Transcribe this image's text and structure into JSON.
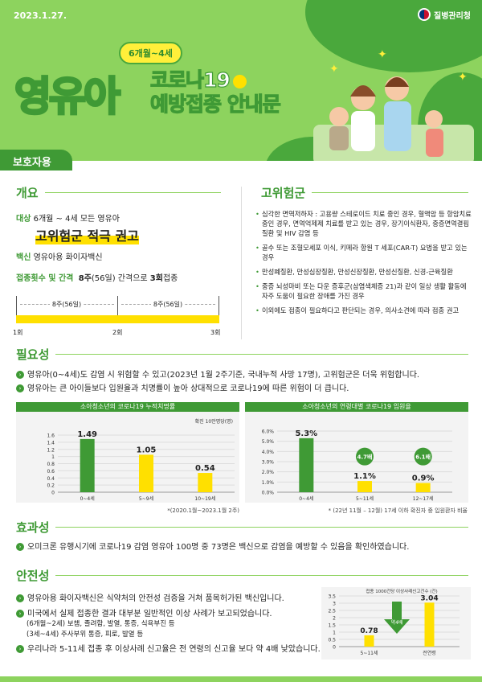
{
  "header": {
    "date": "2023.1.27.",
    "org": "질병관리청",
    "age_badge": "6개월~4세",
    "title_big": "영유아",
    "title_line1": "코로나19",
    "title_line2": "예방접종 안내문",
    "audience_tab": "보호자용"
  },
  "overview": {
    "title": "개요",
    "target_label": "대상",
    "target_value": "6개월 ~ 4세 모든 영유아",
    "recommendation": "고위험군 적극 권고",
    "vaccine_label": "백신",
    "vaccine_value": "영유아용 화이자백신",
    "schedule_label": "접종횟수 및 간격",
    "schedule_value_pre": "8주",
    "schedule_value_mid": "(56일) 간격으로 ",
    "schedule_value_bold": "3회",
    "schedule_value_post": "접종",
    "intervals": [
      "8주(56일)",
      "8주(56일)"
    ],
    "doses": [
      "1회",
      "2회",
      "3회"
    ]
  },
  "high_risk": {
    "title": "고위험군",
    "items": [
      "심각한 면역저하자 : 고용량 스테로이드 치료 중인 경우, 혈액암 등 항암치료 중인 경우, 면역억제제 치료를 받고 있는 경우, 장기이식환자, 중증면역결핍질환 및 HIV 감염 등",
      "골수 또는 조혈모세포 이식, 키메라 항원 T 세포(CAR-T) 요법을 받고 있는 경우",
      "만성폐질환, 만성심장질환, 만성신장질환, 만성신질환, 신경-근육질환",
      "중증 뇌성마비 또는 다운 증후군(삼염색체증 21)과 같이 일상 생활 활동에 자주 도움이 필요한 장애를 가진 경우",
      "이외에도 접종이 필요하다고 판단되는 경우, 의사소견에 따라 접종 권고"
    ]
  },
  "necessity": {
    "title": "필요성",
    "bullets": [
      "영유아(0~4세)도 감염 시 위험할 수 있고(2023년 1월 2주기준, 국내누적 사망 17명), 고위험군은 더욱 위험합니다.",
      "영유아는 큰 아이들보다 입원율과 치명률이 높아 상대적으로 코로나19에 따른 위험이 더 큽니다."
    ]
  },
  "effectiveness": {
    "title": "효과성",
    "bullets": [
      "오미크론 유행시기에 코로나19 감염 영유아 100명 중 73명은 백신으로 감염을 예방할 수 있음을 확인하였습니다."
    ]
  },
  "safety": {
    "title": "안전성",
    "bullets": [
      "영유아용 화이자백신은 식약처의 안전성 검증을 거쳐 품목허가된 백신입니다.",
      "미국에서 실제 접종한 결과 대부분 일반적인 이상 사례가 보고되었습니다.",
      "우리나라 5-11세 접종 후 이상사례 신고율은 전 연령의 신고율 보다 약 4배 낮았습니다."
    ],
    "sub_lines": [
      "(6개월~2세)  보챔, 졸려함, 발열, 통증, 식욕부진  등",
      "(3세~4세) 주사부위 통증, 피로, 발열 등"
    ]
  },
  "colors": {
    "green": "#3f9a35",
    "light_green": "#8dd35e",
    "yellow": "#ffe000"
  },
  "chart_data": [
    {
      "type": "bar",
      "title": "소아청소년의 코로나19 누적치명률",
      "unit_label": "확진 10만명당(명)",
      "categories": [
        "0~4세",
        "5~9세",
        "10~19세"
      ],
      "values": [
        1.49,
        1.05,
        0.54
      ],
      "value_labels": [
        "1.49",
        "1.05",
        "0.54"
      ],
      "ylim": [
        0,
        1.6
      ],
      "yticks": [
        "0",
        "0.2",
        "0.4",
        "0.6",
        "0.8",
        "1",
        "1.2",
        "1.4",
        "1.6"
      ],
      "bar_colors": [
        "#3f9a35",
        "#ffe000",
        "#ffe000"
      ],
      "note": "*(2020.1월~2023.1월 2주)",
      "grid": true
    },
    {
      "type": "bar",
      "title": "소아청소년의 연령대별 코로나19 입원율",
      "categories": [
        "0~4세",
        "5~11세",
        "12~17세"
      ],
      "values": [
        5.3,
        1.1,
        0.9
      ],
      "value_labels": [
        "5.3%",
        "1.1%",
        "0.9%"
      ],
      "ratio_badges": [
        "",
        "4.7배",
        "6.1배"
      ],
      "ylim": [
        0,
        6
      ],
      "yticks": [
        "0.0%",
        "1.0%",
        "2.0%",
        "3.0%",
        "4.0%",
        "5.0%",
        "6.0%"
      ],
      "bar_colors": [
        "#3f9a35",
        "#ffe000",
        "#ffe000"
      ],
      "note": "* (22년 11월 – 12월) 17세 이하 확진자 중  입원환자 비율",
      "grid": true
    },
    {
      "type": "bar",
      "title": "접종 1000건당 이상사례신고건수 (건)",
      "categories": [
        "5~11세",
        "전연령"
      ],
      "values": [
        0.78,
        3.04
      ],
      "value_labels": [
        "0.78",
        "3.04"
      ],
      "ylim": [
        0,
        3.5
      ],
      "yticks": [
        "0",
        "0.5",
        "1",
        "1.5",
        "2",
        "2.5",
        "3",
        "3.5"
      ],
      "bar_colors": [
        "#ffe000",
        "#ffe000"
      ],
      "arrow_label": "약4배",
      "grid": true
    }
  ]
}
